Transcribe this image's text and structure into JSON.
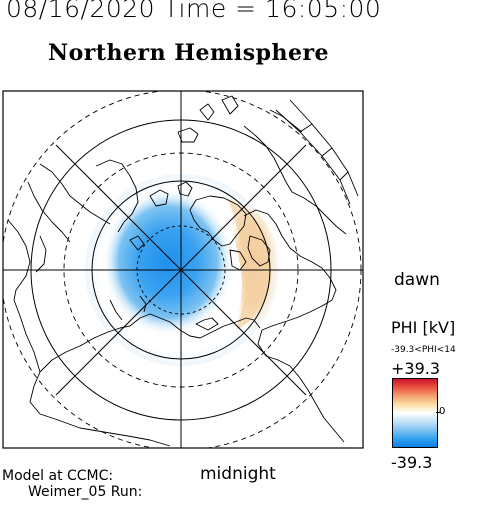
{
  "header": {
    "datetime": "08/16/2020 Time = 16:05:00",
    "title": "Northern Hemisphere"
  },
  "labels": {
    "dawn": "dawn",
    "midnight": "midnight"
  },
  "colorbar": {
    "title": "PHI [kV]",
    "range_text": "-39.3<PHI<14",
    "max_label": "+39.3",
    "zero_label": "0",
    "min_label": "-39.3",
    "colors": {
      "positive": "#cc1030",
      "zero": "#ffffff",
      "negative": "#1080e8"
    }
  },
  "footer": {
    "model_label": "Model at CCMC:",
    "run_label": "Weimer_05 Run:"
  },
  "potential_field": {
    "min_kv": -39.3,
    "max_kv": 14,
    "negative_cell": "dusk/pole (left of center)",
    "positive_cell": "dawn side"
  },
  "map": {
    "projection": "polar stereographic, north pole centered",
    "grid": "latitude rings and meridians every 30 degrees"
  }
}
